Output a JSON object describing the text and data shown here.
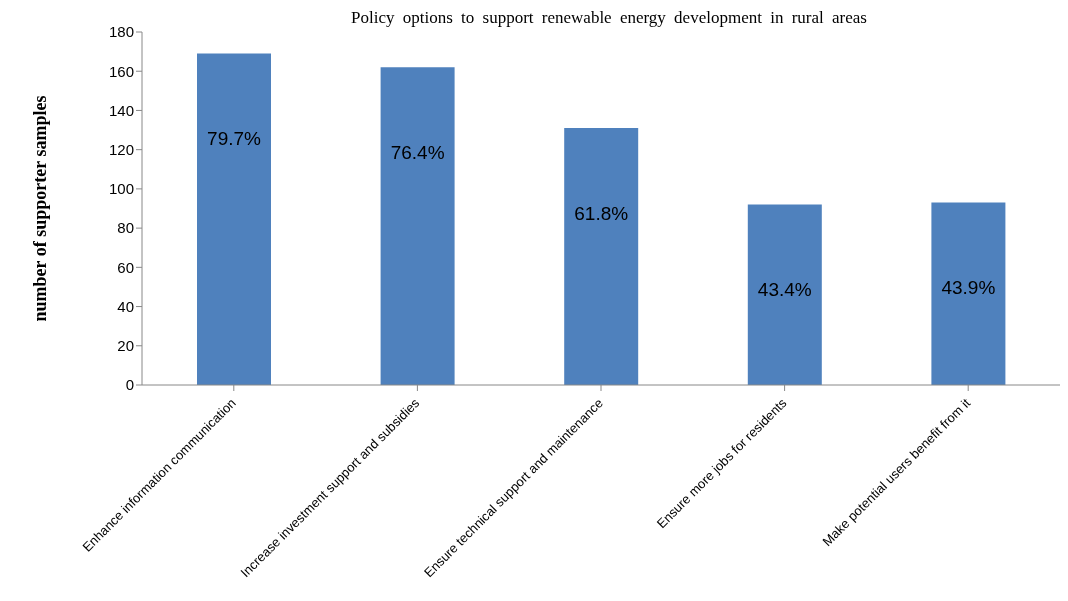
{
  "chart_data": {
    "type": "bar",
    "title": "Policy options to support renewable energy development in rural areas",
    "ylabel": "number of supporter samples",
    "categories": [
      "Enhance information communication",
      "Increase investment support and subsidies",
      "Ensure technical support and maintenance",
      "Ensure more jobs for residents",
      "Make potential users benefit from it"
    ],
    "values": [
      169,
      162,
      131,
      92,
      93
    ],
    "annotations": [
      "79.7%",
      "76.4%",
      "61.8%",
      "43.4%",
      "43.9%"
    ],
    "color": "#4f81bd",
    "ylim": [
      0,
      180
    ],
    "yticks": [
      0,
      20,
      40,
      60,
      80,
      100,
      120,
      140,
      160,
      180
    ],
    "grid": false,
    "legend": false
  }
}
